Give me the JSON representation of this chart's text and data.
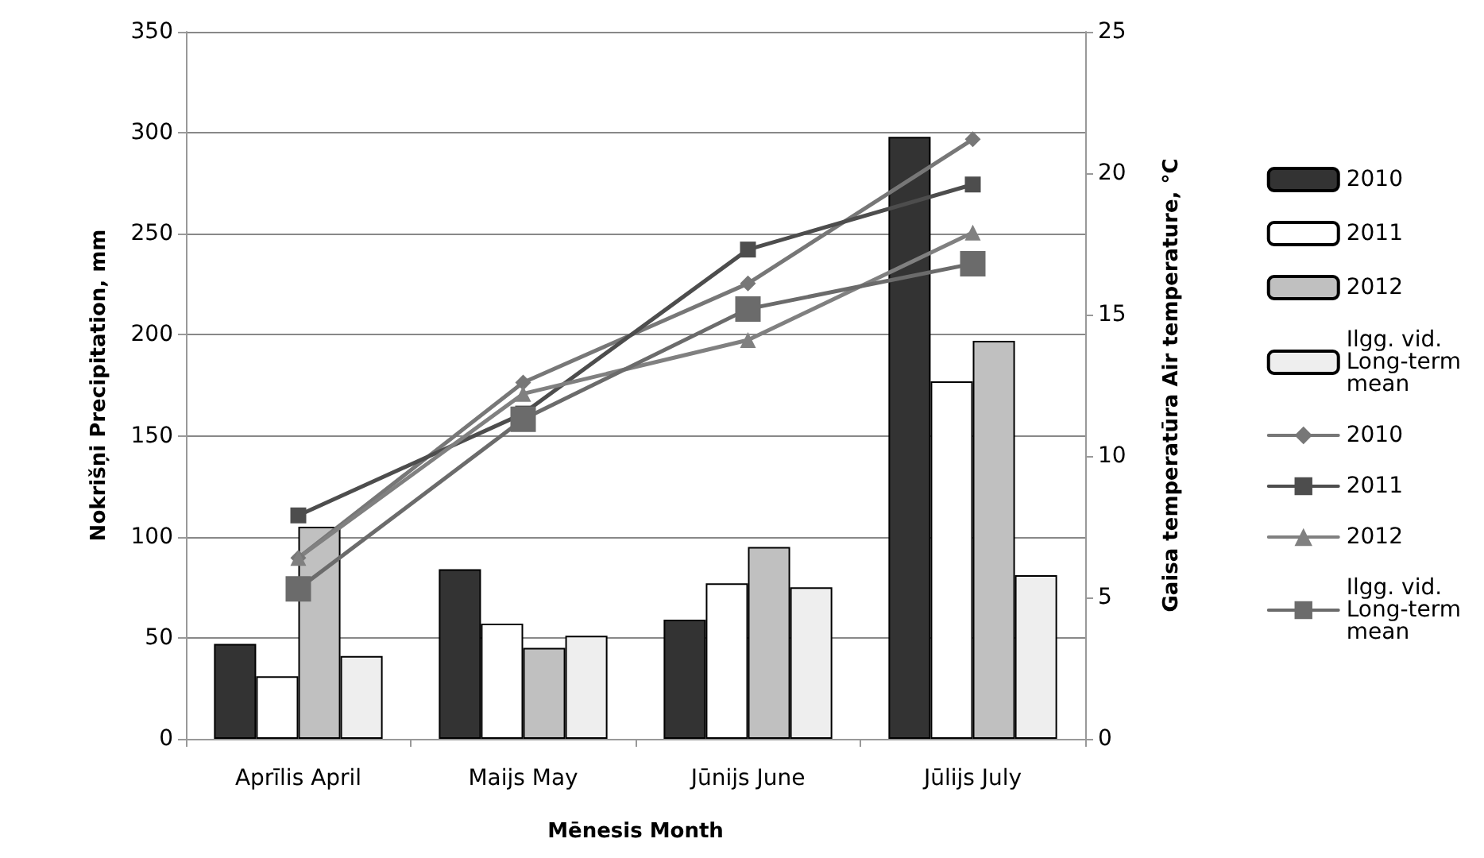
{
  "chart_data": {
    "type": "bar",
    "xlabel": "Mēnesis Month",
    "ylabel": "Nokrišņi Precipitation, mm",
    "y2label": "Gaisa temperatūra Air temperature, °C",
    "categories": [
      "Aprīlis April",
      "Maijs May",
      "Jūnijs June",
      "Jūlijs July"
    ],
    "series": [
      {
        "name": "2010",
        "color": "#333333",
        "values": [
          47,
          84,
          59,
          298
        ]
      },
      {
        "name": "2011",
        "color": "#ffffff",
        "values": [
          31,
          57,
          77,
          177
        ]
      },
      {
        "name": "2012",
        "color": "#c0c0c0",
        "values": [
          105,
          45,
          95,
          197
        ]
      },
      {
        "name": "Ilgg. vid. Long-term mean",
        "color": "#eeeeee",
        "values": [
          41,
          51,
          75,
          81
        ]
      },
      {
        "name": "2010",
        "type": "line",
        "axis": "y2",
        "marker": "diamond",
        "color": "#777777",
        "values": [
          6.4,
          12.6,
          16.1,
          21.2
        ]
      },
      {
        "name": "2011",
        "type": "line",
        "axis": "y2",
        "marker": "square",
        "color": "#4d4d4d",
        "values": [
          7.9,
          11.5,
          17.3,
          19.6
        ]
      },
      {
        "name": "2012",
        "type": "line",
        "axis": "y2",
        "marker": "triangle",
        "color": "#808080",
        "values": [
          6.4,
          12.2,
          14.1,
          17.9
        ]
      },
      {
        "name": "Ilgg. vid. Long-term mean",
        "type": "line",
        "axis": "y2",
        "marker": "square",
        "color": "#6b6b6b",
        "values": [
          5.3,
          11.3,
          15.2,
          16.8
        ]
      }
    ],
    "ylim": [
      0,
      350
    ],
    "yticks": [
      0,
      50,
      100,
      150,
      200,
      250,
      300,
      350
    ],
    "y2lim": [
      0,
      25
    ],
    "y2ticks": [
      0,
      5,
      10,
      15,
      20,
      25
    ],
    "grid": "y",
    "legend": "right"
  }
}
